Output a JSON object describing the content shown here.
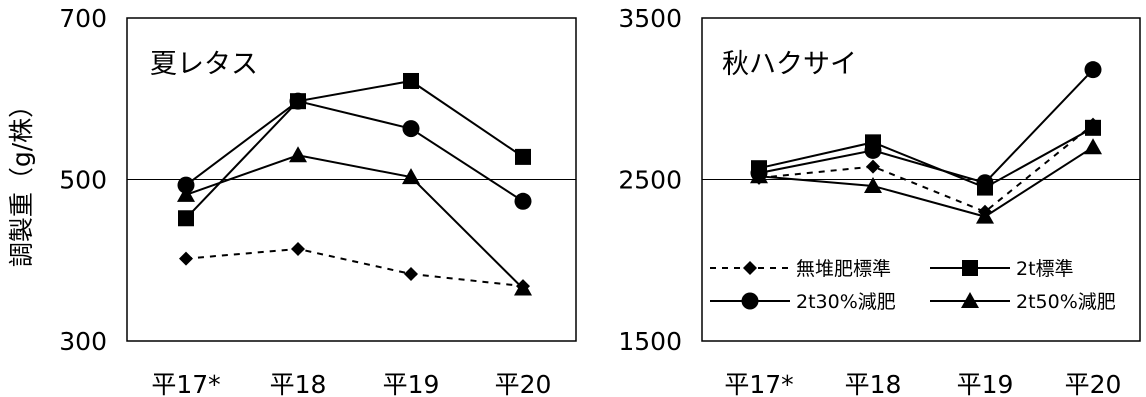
{
  "y_axis_label": "調製重（g/株）",
  "chart_data": [
    {
      "type": "line",
      "title": "夏レタス",
      "categories": [
        "平17*",
        "平18",
        "平19",
        "平20"
      ],
      "ylim": [
        300,
        700
      ],
      "yticks": [
        "300",
        "500",
        "700"
      ],
      "reference_line": 500,
      "series": [
        {
          "name": "無堆肥標準",
          "marker": "diamond",
          "dashed": true,
          "values": [
            402,
            414,
            383,
            368
          ]
        },
        {
          "name": "2t標準",
          "marker": "square",
          "dashed": false,
          "values": [
            452,
            597,
            622,
            528
          ]
        },
        {
          "name": "2t30%減肥",
          "marker": "circle",
          "dashed": false,
          "values": [
            493,
            597,
            563,
            473
          ]
        },
        {
          "name": "2t50%減肥",
          "marker": "triangle",
          "dashed": false,
          "values": [
            481,
            530,
            503,
            365
          ]
        }
      ]
    },
    {
      "type": "line",
      "title": "秋ハクサイ",
      "categories": [
        "平17*",
        "平18",
        "平19",
        "平20"
      ],
      "ylim": [
        1500,
        3500
      ],
      "yticks": [
        "1500",
        "2500",
        "3500"
      ],
      "reference_line": 2500,
      "series": [
        {
          "name": "無堆肥標準",
          "marker": "diamond",
          "dashed": true,
          "values": [
            2510,
            2580,
            2300,
            2840
          ]
        },
        {
          "name": "2t標準",
          "marker": "square",
          "dashed": false,
          "values": [
            2570,
            2730,
            2450,
            2820
          ]
        },
        {
          "name": "2t30%減肥",
          "marker": "circle",
          "dashed": false,
          "values": [
            2540,
            2680,
            2480,
            3180
          ]
        },
        {
          "name": "2t50%減肥",
          "marker": "triangle",
          "dashed": false,
          "values": [
            2520,
            2460,
            2270,
            2700
          ]
        }
      ]
    }
  ],
  "legend": {
    "items": [
      "無堆肥標準",
      "2t標準",
      "2t30%減肥",
      "2t50%減肥"
    ]
  }
}
